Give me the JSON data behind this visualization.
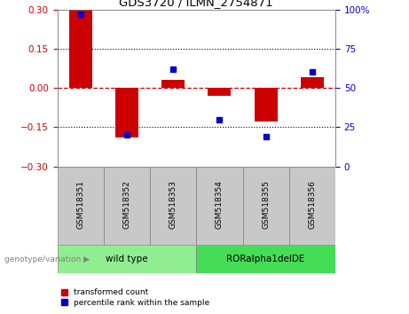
{
  "title": "GDS3720 / ILMN_2754871",
  "samples": [
    "GSM518351",
    "GSM518352",
    "GSM518353",
    "GSM518354",
    "GSM518355",
    "GSM518356"
  ],
  "transformed_count": [
    0.3,
    -0.19,
    0.03,
    -0.03,
    -0.13,
    0.04
  ],
  "percentile_rank": [
    97,
    20,
    62,
    30,
    19,
    60
  ],
  "groups": [
    {
      "label": "wild type",
      "samples": [
        0,
        1,
        2
      ],
      "color": "#90EE90"
    },
    {
      "label": "RORalpha1delDE",
      "samples": [
        3,
        4,
        5
      ],
      "color": "#44DD55"
    }
  ],
  "bar_color": "#CC0000",
  "marker_color": "#0000CC",
  "ylim_left": [
    -0.3,
    0.3
  ],
  "ylim_right": [
    0,
    100
  ],
  "yticks_left": [
    -0.3,
    -0.15,
    0,
    0.15,
    0.3
  ],
  "yticks_right": [
    0,
    25,
    50,
    75,
    100
  ],
  "hline_color": "#CC0000",
  "dotted_color": "black",
  "plot_bg_color": "#FFFFFF",
  "label_transformed": "transformed count",
  "label_percentile": "percentile rank within the sample",
  "genotype_label": "genotype/variation",
  "sample_box_color": "#C8C8C8",
  "bar_width": 0.5,
  "marker_size": 5
}
